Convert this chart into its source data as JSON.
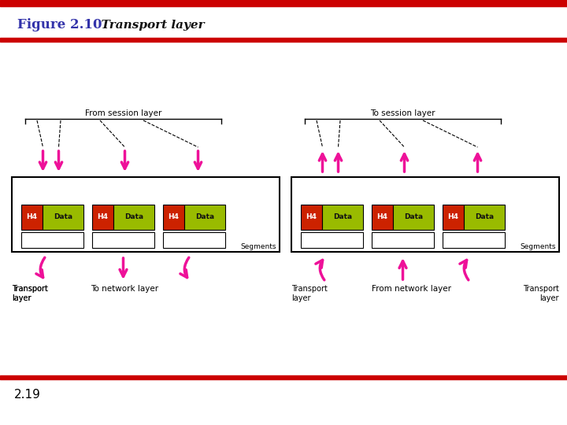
{
  "title_bold": "Figure 2.10",
  "title_italic": "  Transport layer",
  "title_color": "#3333AA",
  "red_line_color": "#CC0000",
  "bg_color": "#FFFFFF",
  "h4_color": "#CC2200",
  "data_color": "#99BB00",
  "arrow_color": "#EE1199",
  "box_outline": "#000000",
  "page_num": "2.19",
  "left_label_top": "From session layer",
  "right_label_top": "To session layer",
  "left_label_bottom_left": "Transport\nlayer",
  "left_label_bottom_mid": "To network layer",
  "right_label_bottom_mid": "From network layer",
  "right_label_bottom_right": "Transport\nlayer",
  "segments_label": "Segments",
  "figw": 7.2,
  "figh": 5.4,
  "dpi": 100
}
